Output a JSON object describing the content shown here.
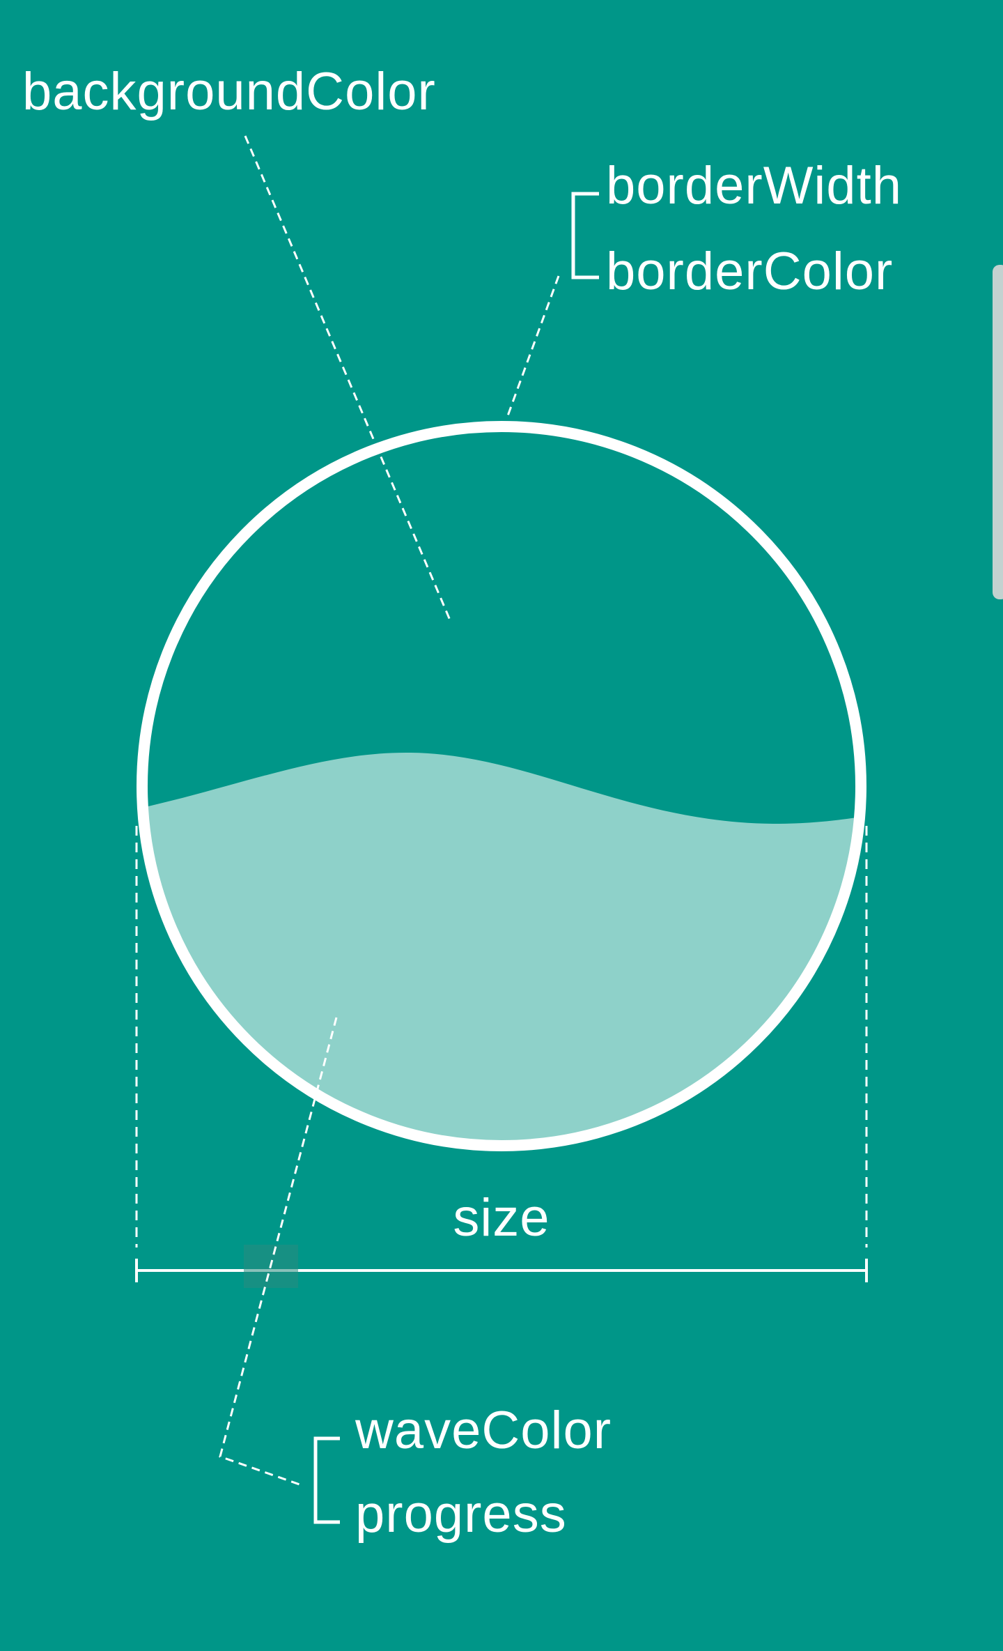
{
  "labels": {
    "background_color": "backgroundColor",
    "border_width": "borderWidth",
    "border_color": "borderColor",
    "size": "size",
    "wave_color": "waveColor",
    "progress": "progress"
  },
  "colors": {
    "background": "#009688",
    "wave": "#8ED1C9",
    "border": "#FFFFFF",
    "annotation": "#FFFFFF",
    "scrollbar": "#D8D8D8"
  }
}
